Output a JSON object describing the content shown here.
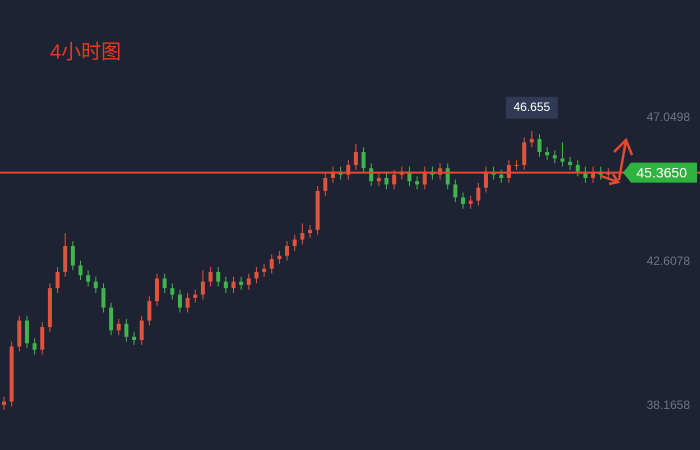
{
  "chart_data": {
    "type": "candlestick",
    "title": "4小时图",
    "open": [
      38.2,
      38.3,
      40.0,
      40.8,
      40.1,
      39.9,
      40.6,
      41.8,
      42.3,
      43.1,
      42.5,
      42.2,
      42.0,
      41.8,
      41.2,
      40.5,
      40.7,
      40.3,
      40.2,
      40.8,
      41.4,
      42.1,
      41.8,
      41.6,
      41.2,
      41.5,
      41.6,
      42.0,
      42.3,
      42.0,
      41.8,
      42.0,
      41.9,
      42.1,
      42.3,
      42.4,
      42.7,
      42.8,
      43.1,
      43.3,
      43.5,
      43.6,
      44.8,
      45.2,
      45.4,
      45.3,
      45.6,
      46.0,
      45.5,
      45.1,
      45.2,
      45.0,
      45.3,
      45.4,
      45.1,
      45.0,
      45.4,
      45.3,
      45.5,
      45.0,
      44.6,
      44.4,
      44.5,
      44.9,
      45.4,
      45.3,
      45.2,
      45.6,
      45.6,
      46.3,
      46.4,
      46.0,
      45.9,
      45.8,
      45.7,
      45.6,
      45.4,
      45.2,
      45.4,
      45.3
    ],
    "high": [
      38.45,
      40.15,
      40.95,
      40.95,
      40.25,
      40.75,
      41.95,
      42.45,
      43.5,
      43.25,
      42.65,
      42.35,
      42.15,
      41.95,
      41.35,
      40.85,
      40.85,
      40.45,
      40.95,
      41.55,
      42.25,
      42.25,
      41.95,
      41.75,
      41.65,
      41.75,
      42.35,
      42.45,
      42.45,
      42.15,
      42.15,
      42.15,
      42.25,
      42.45,
      42.55,
      42.85,
      42.95,
      43.25,
      43.45,
      43.8,
      43.75,
      44.95,
      45.35,
      45.55,
      45.55,
      45.75,
      46.25,
      46.15,
      45.65,
      45.35,
      45.35,
      45.45,
      45.55,
      45.55,
      45.25,
      45.55,
      45.55,
      45.65,
      45.65,
      45.15,
      44.75,
      44.65,
      45.05,
      45.55,
      45.55,
      45.45,
      45.75,
      45.75,
      46.45,
      46.655,
      46.55,
      46.15,
      46.05,
      46.3,
      45.85,
      45.75,
      45.55,
      45.55,
      45.55,
      45.5
    ],
    "low": [
      38.05,
      38.15,
      39.85,
      39.95,
      39.75,
      39.75,
      40.45,
      41.65,
      42.15,
      42.35,
      42.05,
      41.85,
      41.65,
      41.05,
      40.35,
      40.35,
      40.15,
      40.05,
      40.05,
      40.65,
      41.25,
      41.65,
      41.45,
      41.05,
      41.05,
      41.35,
      41.45,
      41.85,
      41.85,
      41.65,
      41.65,
      41.75,
      41.75,
      41.95,
      42.15,
      42.25,
      42.55,
      42.65,
      42.95,
      43.15,
      43.35,
      43.45,
      44.65,
      45.05,
      45.15,
      45.15,
      45.45,
      45.35,
      44.95,
      44.95,
      44.85,
      44.85,
      45.15,
      44.95,
      44.85,
      44.85,
      45.15,
      45.15,
      44.85,
      44.45,
      44.25,
      44.25,
      44.35,
      44.75,
      45.15,
      45.05,
      45.05,
      45.45,
      45.45,
      46.15,
      45.85,
      45.75,
      45.65,
      45.55,
      45.45,
      45.25,
      45.05,
      45.05,
      45.15,
      45.15
    ],
    "close": [
      38.3,
      40.0,
      40.8,
      40.1,
      39.9,
      40.6,
      41.8,
      42.3,
      43.1,
      42.5,
      42.2,
      42.0,
      41.8,
      41.2,
      40.5,
      40.7,
      40.3,
      40.2,
      40.8,
      41.4,
      42.1,
      41.8,
      41.6,
      41.2,
      41.5,
      41.6,
      42.0,
      42.3,
      42.0,
      41.8,
      42.0,
      41.9,
      42.1,
      42.3,
      42.4,
      42.7,
      42.8,
      43.1,
      43.3,
      43.5,
      43.6,
      44.8,
      45.2,
      45.4,
      45.3,
      45.6,
      46.0,
      45.5,
      45.1,
      45.2,
      45.0,
      45.3,
      45.4,
      45.1,
      45.0,
      45.4,
      45.3,
      45.5,
      45.0,
      44.6,
      44.4,
      44.5,
      44.9,
      45.4,
      45.3,
      45.2,
      45.6,
      45.6,
      46.3,
      46.4,
      46.0,
      45.9,
      45.8,
      45.7,
      45.6,
      45.4,
      45.2,
      45.4,
      45.3,
      45.365
    ],
    "up_color": "#e0533d",
    "down_color": "#3fb54c",
    "line_color": "#e5492f",
    "last_price": {
      "value": 45.365,
      "label": "45.3650"
    },
    "ylim": [
      36.807,
      50.69
    ],
    "yticks": [
      38.1658,
      42.6078,
      47.0498
    ],
    "grid": false
  }
}
